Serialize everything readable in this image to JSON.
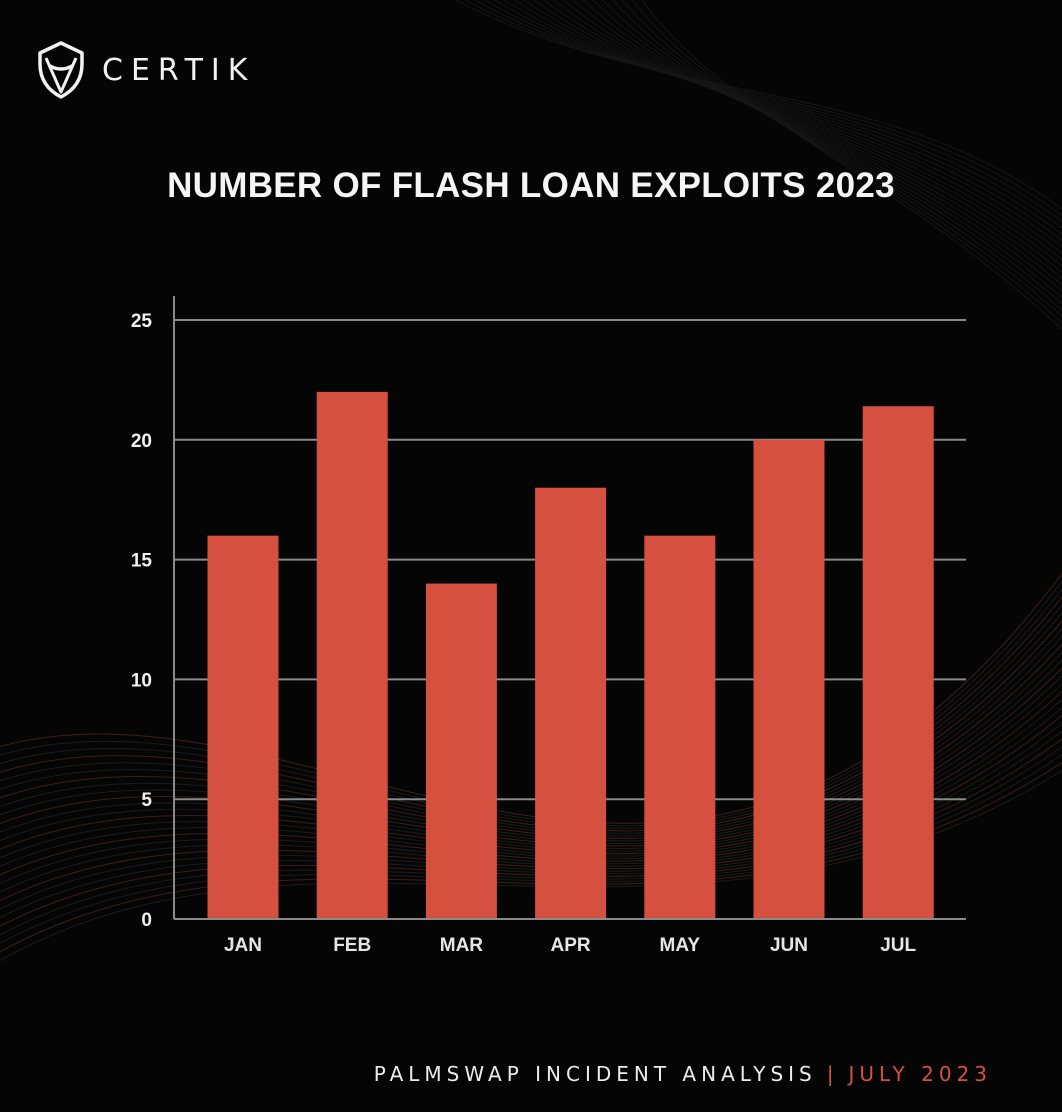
{
  "brand": {
    "name": "CERTIK",
    "logo_icon": "certik-shield-icon"
  },
  "footer": {
    "left": "PALMSWAP INCIDENT ANALYSIS",
    "separator": "|",
    "right": "JULY 2023"
  },
  "colors": {
    "bar": "#d5503f",
    "background": "#050505",
    "text": "#f2f2f2",
    "grid": "#8a8a8a"
  },
  "chart_data": {
    "type": "bar",
    "title": "NUMBER OF FLASH LOAN EXPLOITS 2023",
    "xlabel": "",
    "ylabel": "",
    "categories": [
      "JAN",
      "FEB",
      "MAR",
      "APR",
      "MAY",
      "JUN",
      "JUL"
    ],
    "values": [
      16,
      22,
      14,
      18,
      16,
      20,
      21.4
    ],
    "ylim": [
      0,
      25
    ],
    "yticks": [
      0,
      5,
      10,
      15,
      20,
      25
    ],
    "grid": true,
    "legend": "none"
  }
}
